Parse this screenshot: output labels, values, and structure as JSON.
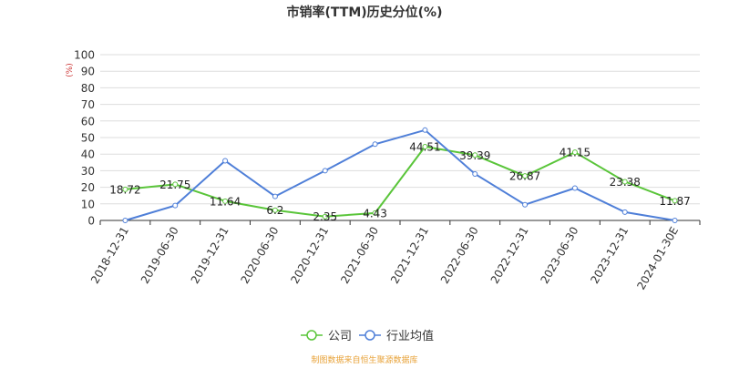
{
  "chart_data": {
    "type": "line",
    "title": "市销率(TTM)历史分位(%)",
    "ylabel": "(%)",
    "ylim": [
      0,
      100
    ],
    "yticks": [
      0,
      10,
      20,
      30,
      40,
      50,
      60,
      70,
      80,
      90,
      100
    ],
    "grid": true,
    "legend_position": "bottom-center",
    "categories": [
      "2018-12-31",
      "2019-06-30",
      "2019-12-31",
      "2020-06-30",
      "2020-12-31",
      "2021-06-30",
      "2021-12-31",
      "2022-06-30",
      "2022-12-31",
      "2023-06-30",
      "2023-12-31",
      "2024-01-30E"
    ],
    "series": [
      {
        "name": "公司",
        "color": "#5ac53a",
        "values": [
          18.72,
          21.75,
          11.64,
          6.2,
          2.35,
          4.43,
          44.51,
          39.39,
          26.87,
          41.15,
          23.38,
          11.87
        ],
        "data_labels": [
          "18.72",
          "21.75",
          "11.64",
          "6.2",
          "2.35",
          "4.43",
          "44.51",
          "39.39",
          "26.87",
          "41.15",
          "23.38",
          "11.87"
        ]
      },
      {
        "name": "行业均值",
        "color": "#4f7fd8",
        "values": [
          0,
          9,
          36,
          14.5,
          30,
          46,
          54.5,
          28,
          9.5,
          19.5,
          5,
          0
        ]
      }
    ]
  },
  "footer": {
    "source": "制图数据来自恒生聚源数据库",
    "source_color": "#e8a33a"
  }
}
